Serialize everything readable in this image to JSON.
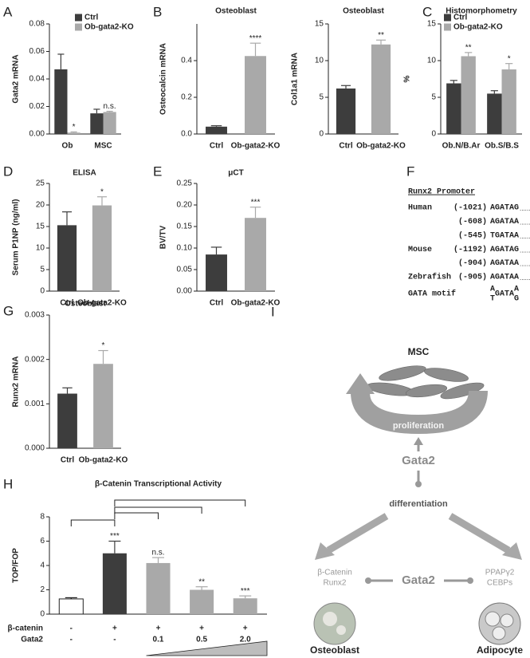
{
  "chart_data": [
    {
      "type": "bar",
      "panel": "A",
      "ylabel": "Gata2 mRNA",
      "categories": [
        "Ob",
        "MSC"
      ],
      "series": [
        {
          "name": "Ctrl",
          "color": "#3d3d3d",
          "values": [
            0.047,
            0.015
          ],
          "errors": [
            0.011,
            0.003
          ]
        },
        {
          "name": "Ob-gata2-KO",
          "color": "#a9a9a9",
          "values": [
            0.001,
            0.016
          ],
          "errors": [
            0.0005,
            0.0005
          ],
          "annotations": [
            "*",
            "n.s."
          ]
        }
      ],
      "ylim": [
        0,
        0.08
      ],
      "yticks": [
        {
          "value": 0,
          "label": "0.00"
        },
        {
          "value": 0.02,
          "label": "0.02"
        },
        {
          "value": 0.04,
          "label": "0.04"
        },
        {
          "value": 0.06,
          "label": "0.06"
        },
        {
          "value": 0.08,
          "label": "0.08"
        }
      ],
      "legend": "upper right"
    },
    {
      "type": "bar",
      "panel": "B",
      "title": "Osteoblast",
      "ylabel": "Osteocalcin mRNA",
      "categories": [
        "Ctrl",
        "Ob-gata2-KO"
      ],
      "series": [
        {
          "colors": [
            "#3d3d3d",
            "#a9a9a9"
          ],
          "values": [
            0.04,
            0.425
          ],
          "errors": [
            0.005,
            0.07
          ],
          "annotations": [
            null,
            "****"
          ]
        }
      ],
      "ylim": [
        0,
        0.6
      ],
      "yticks": [
        {
          "value": 0,
          "label": "0.0"
        },
        {
          "value": 0.2,
          "label": "0.2"
        },
        {
          "value": 0.4,
          "label": "0.4"
        }
      ]
    },
    {
      "type": "bar",
      "title": "Osteoblast",
      "ylabel": "Col1a1 mRNA",
      "categories": [
        "Ctrl",
        "Ob-gata2-KO"
      ],
      "series": [
        {
          "colors": [
            "#3d3d3d",
            "#a9a9a9"
          ],
          "values": [
            6.2,
            12.2
          ],
          "errors": [
            0.4,
            0.6
          ],
          "annotations": [
            null,
            "**"
          ]
        }
      ],
      "ylim": [
        0,
        15
      ],
      "yticks": [
        0,
        5,
        10,
        15
      ]
    },
    {
      "type": "bar",
      "panel": "C",
      "title": "Histomorphometry",
      "ylabel": "%",
      "categories": [
        "Ob.N/B.Ar",
        "Ob.S/B.S"
      ],
      "series": [
        {
          "name": "Ctrl",
          "color": "#3d3d3d",
          "values": [
            6.9,
            5.5
          ],
          "errors": [
            0.4,
            0.4
          ]
        },
        {
          "name": "Ob-gata2-KO",
          "color": "#a9a9a9",
          "values": [
            10.6,
            8.8
          ],
          "errors": [
            0.5,
            0.8
          ],
          "annotations": [
            "**",
            "*"
          ]
        }
      ],
      "ylim": [
        0,
        15
      ],
      "yticks": [
        0,
        5,
        10,
        15
      ],
      "legend": "upper left"
    },
    {
      "type": "bar",
      "panel": "D",
      "title": "ELISA",
      "ylabel": "Serum P1NP (ng/ml)",
      "categories": [
        "Ctrl",
        "Ob-gata2-KO"
      ],
      "series": [
        {
          "colors": [
            "#3d3d3d",
            "#a9a9a9"
          ],
          "values": [
            15.3,
            19.9
          ],
          "errors": [
            3.1,
            2.0
          ],
          "annotations": [
            null,
            "*"
          ]
        }
      ],
      "ylim": [
        0,
        25
      ],
      "yticks": [
        0,
        5,
        10,
        15,
        20,
        25
      ]
    },
    {
      "type": "bar",
      "panel": "E",
      "title": "μCT",
      "ylabel": "BV/TV",
      "categories": [
        "Ctrl",
        "Ob-gata2-KO"
      ],
      "series": [
        {
          "colors": [
            "#3d3d3d",
            "#a9a9a9"
          ],
          "values": [
            0.085,
            0.17
          ],
          "errors": [
            0.017,
            0.025
          ],
          "annotations": [
            null,
            "***"
          ]
        }
      ],
      "ylim": [
        0,
        0.25
      ],
      "yticks": [
        {
          "value": 0,
          "label": "0.00"
        },
        {
          "value": 0.05,
          "label": "0.05"
        },
        {
          "value": 0.1,
          "label": "0.10"
        },
        {
          "value": 0.15,
          "label": "0.15"
        },
        {
          "value": 0.2,
          "label": "0.20"
        },
        {
          "value": 0.25,
          "label": "0.25"
        }
      ]
    },
    {
      "type": "bar",
      "panel": "G",
      "title": "Osteoblast",
      "ylabel": "Runx2 mRNA",
      "categories": [
        "Ctrl",
        "Ob-gata2-KO"
      ],
      "series": [
        {
          "colors": [
            "#3d3d3d",
            "#a9a9a9"
          ],
          "values": [
            0.00123,
            0.0019
          ],
          "errors": [
            0.00013,
            0.0003
          ],
          "annotations": [
            null,
            "*"
          ]
        }
      ],
      "ylim": [
        0,
        0.003
      ],
      "yticks": [
        {
          "value": 0,
          "label": "0.000"
        },
        {
          "value": 0.001,
          "label": "0.001"
        },
        {
          "value": 0.002,
          "label": "0.002"
        },
        {
          "value": 0.003,
          "label": "0.003"
        }
      ]
    },
    {
      "type": "bar",
      "panel": "H",
      "title": "β-Catenin Transcriptional Activity",
      "ylabel": "TOP/FOP",
      "series": [
        {
          "colors": [
            "#ffffff",
            "#3d3d3d",
            "#a9a9a9",
            "#a9a9a9",
            "#a9a9a9"
          ],
          "values": [
            1.25,
            5,
            4.2,
            2,
            1.3
          ],
          "errors": [
            0.1,
            1,
            0.45,
            0.25,
            0.2
          ],
          "annotations": [
            null,
            "***",
            "n.s.",
            "**",
            "***"
          ]
        }
      ],
      "ylim": [
        0,
        8
      ],
      "yticks": [
        0,
        2,
        4,
        6,
        8
      ],
      "rows": [
        {
          "label": "β-catenin",
          "values": [
            "-",
            "+",
            "+",
            "+",
            "+"
          ]
        },
        {
          "label": "Gata2",
          "values": [
            "-",
            "-",
            "0.1",
            "0.5",
            "2.0"
          ]
        }
      ]
    }
  ],
  "sequence_panel": {
    "panel": "F",
    "title": "Runx2 Promoter",
    "rows": [
      {
        "species": "Human",
        "position": "(-1021)",
        "sequence": "AGATAG",
        "dots": "......"
      },
      {
        "position": "(-608)",
        "sequence": "AGATAA",
        "dots": "......"
      },
      {
        "position": "(-545)",
        "sequence": "TGATAA",
        "dots": "......"
      },
      {
        "species": "Mouse",
        "position": "(-1192)",
        "sequence": "AGATAG",
        "dots": "......"
      },
      {
        "position": "(-904)",
        "sequence": "AGATAA",
        "dots": "......"
      },
      {
        "species": "Zebrafish",
        "position": "(-905)",
        "sequence": "AGATAA",
        "dots": "......"
      }
    ],
    "motif": {
      "label": "GATA motif",
      "top_left": "A",
      "bottom_left": "T",
      "core": "GATA",
      "top_right": "A",
      "bottom_right": "G"
    }
  },
  "diagram": {
    "panel": "I",
    "stem_cell": "MSC",
    "proliferation": "proliferation",
    "regulator": "Gata2",
    "differentiation": "differentiation",
    "osteoblast_factors": [
      "β-Catenin",
      "Runx2"
    ],
    "inhibitor": "Gata2",
    "adipocyte_factors": [
      "PPAPγ2",
      "CEBPs"
    ],
    "osteoblast": "Osteoblast",
    "adipocyte": "Adipocyte"
  }
}
